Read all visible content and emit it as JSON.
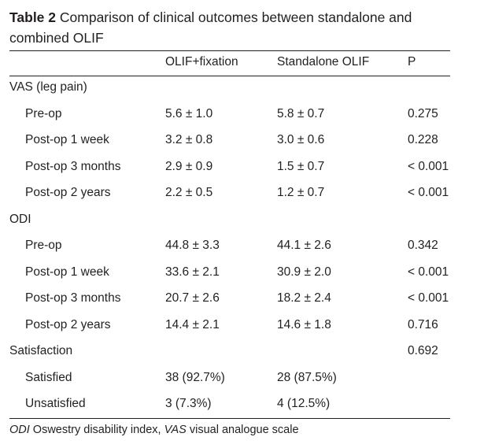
{
  "table": {
    "label": "Table 2",
    "title": "Comparison of clinical outcomes between standalone and combined OLIF",
    "columns": [
      "",
      "OLIF+fixation",
      "Standalone OLIF",
      "P"
    ],
    "rows": [
      {
        "type": "section",
        "label": "VAS (leg pain)",
        "c1": "",
        "c2": "",
        "p": ""
      },
      {
        "type": "item",
        "label": "Pre-op",
        "c1": "5.6 ± 1.0",
        "c2": "5.8 ± 0.7",
        "p": "0.275"
      },
      {
        "type": "item",
        "label": "Post-op 1 week",
        "c1": "3.2 ± 0.8",
        "c2": "3.0 ± 0.6",
        "p": "0.228"
      },
      {
        "type": "item",
        "label": "Post-op 3 months",
        "c1": "2.9 ± 0.9",
        "c2": "1.5 ± 0.7",
        "p": "< 0.001"
      },
      {
        "type": "item",
        "label": "Post-op 2 years",
        "c1": "2.2 ± 0.5",
        "c2": "1.2 ± 0.7",
        "p": "< 0.001"
      },
      {
        "type": "section",
        "label": "ODI",
        "c1": "",
        "c2": "",
        "p": ""
      },
      {
        "type": "item",
        "label": "Pre-op",
        "c1": "44.8 ± 3.3",
        "c2": "44.1 ± 2.6",
        "p": "0.342"
      },
      {
        "type": "item",
        "label": "Post-op 1 week",
        "c1": "33.6 ± 2.1",
        "c2": "30.9 ± 2.0",
        "p": "< 0.001"
      },
      {
        "type": "item",
        "label": "Post-op 3 months",
        "c1": "20.7 ± 2.6",
        "c2": "18.2 ± 2.4",
        "p": "< 0.001"
      },
      {
        "type": "item",
        "label": "Post-op 2 years",
        "c1": "14.4 ± 2.1",
        "c2": "14.6 ± 1.8",
        "p": "0.716"
      },
      {
        "type": "section",
        "label": "Satisfaction",
        "c1": "",
        "c2": "",
        "p": "0.692"
      },
      {
        "type": "item",
        "label": "Satisfied",
        "c1": "38 (92.7%)",
        "c2": "28 (87.5%)",
        "p": ""
      },
      {
        "type": "item",
        "label": "Unsatisfied",
        "c1": "3 (7.3%)",
        "c2": "4 (12.5%)",
        "p": ""
      }
    ],
    "footnote": {
      "abbr1": "ODI",
      "def1": " Oswestry disability index, ",
      "abbr2": "VAS",
      "def2": " visual analogue scale"
    }
  }
}
